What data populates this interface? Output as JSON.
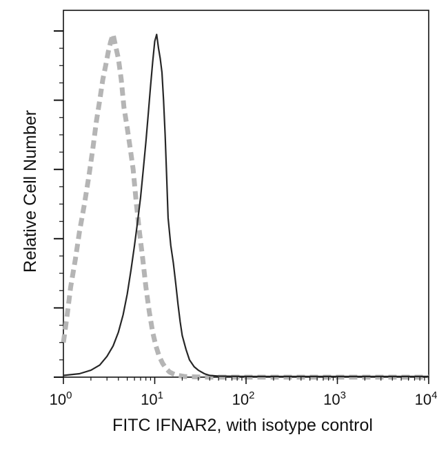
{
  "chart_data": {
    "type": "line",
    "subtype": "flow-cytometry-histogram",
    "title": "",
    "xlabel": "FITC IFNAR2, with isotype control",
    "ylabel": "Relative Cell Number",
    "xscale": "log",
    "xlim": [
      1,
      10000
    ],
    "ylim": [
      0,
      1
    ],
    "x_ticks": [
      {
        "value": 1,
        "base": "10",
        "exp": "0"
      },
      {
        "value": 10,
        "base": "10",
        "exp": "1"
      },
      {
        "value": 100,
        "base": "10",
        "exp": "2"
      },
      {
        "value": 1000,
        "base": "10",
        "exp": "3"
      },
      {
        "value": 10000,
        "base": "10",
        "exp": "4"
      }
    ],
    "y_ticks": [
      0,
      0.2,
      0.4,
      0.6,
      0.8,
      1.0
    ],
    "grid": false,
    "legend": "none",
    "series": [
      {
        "style": "dashed",
        "color": "#b5b5b5",
        "x": [
          1.0,
          1.1,
          1.2,
          1.35,
          1.5,
          1.7,
          1.9,
          2.1,
          2.3,
          2.5,
          2.7,
          2.9,
          3.1,
          3.3,
          3.5,
          3.7,
          4.0,
          4.3,
          4.6,
          5.0,
          5.4,
          5.8,
          6.3,
          6.8,
          7.4,
          8.0,
          8.7,
          9.5,
          10.3,
          11.2,
          12.2,
          13.3,
          14.5,
          15.8,
          17.2,
          19.0,
          21.0,
          25.0,
          40.0,
          100.0,
          1000.0,
          10000.0
        ],
        "y": [
          0.1,
          0.18,
          0.26,
          0.34,
          0.42,
          0.5,
          0.58,
          0.66,
          0.74,
          0.8,
          0.86,
          0.9,
          0.94,
          0.97,
          0.99,
          0.96,
          0.92,
          0.86,
          0.78,
          0.72,
          0.66,
          0.6,
          0.5,
          0.42,
          0.34,
          0.26,
          0.19,
          0.13,
          0.09,
          0.06,
          0.04,
          0.025,
          0.015,
          0.01,
          0.006,
          0.004,
          0.002,
          0.001,
          0.0,
          0.0,
          0.0,
          0.0
        ]
      },
      {
        "style": "solid",
        "color": "#262626",
        "x": [
          1.0,
          1.5,
          2.0,
          2.5,
          3.0,
          3.5,
          4.0,
          4.5,
          5.0,
          5.5,
          6.0,
          6.5,
          7.0,
          7.5,
          8.0,
          8.5,
          9.0,
          9.5,
          10.0,
          10.5,
          11.0,
          11.5,
          12.0,
          12.5,
          13.0,
          13.5,
          14.0,
          15.0,
          16.0,
          17.0,
          18.0,
          19.0,
          20.0,
          22.0,
          24.0,
          27.0,
          30.0,
          35.0,
          40.0,
          50.0,
          100.0,
          1000.0,
          10000.0
        ],
        "y": [
          0.005,
          0.01,
          0.02,
          0.035,
          0.06,
          0.09,
          0.13,
          0.18,
          0.24,
          0.31,
          0.38,
          0.45,
          0.52,
          0.6,
          0.68,
          0.76,
          0.84,
          0.91,
          0.97,
          0.99,
          0.95,
          0.92,
          0.88,
          0.8,
          0.7,
          0.58,
          0.46,
          0.38,
          0.33,
          0.27,
          0.21,
          0.16,
          0.12,
          0.08,
          0.05,
          0.03,
          0.02,
          0.01,
          0.005,
          0.003,
          0.002,
          0.002,
          0.002
        ]
      }
    ]
  }
}
